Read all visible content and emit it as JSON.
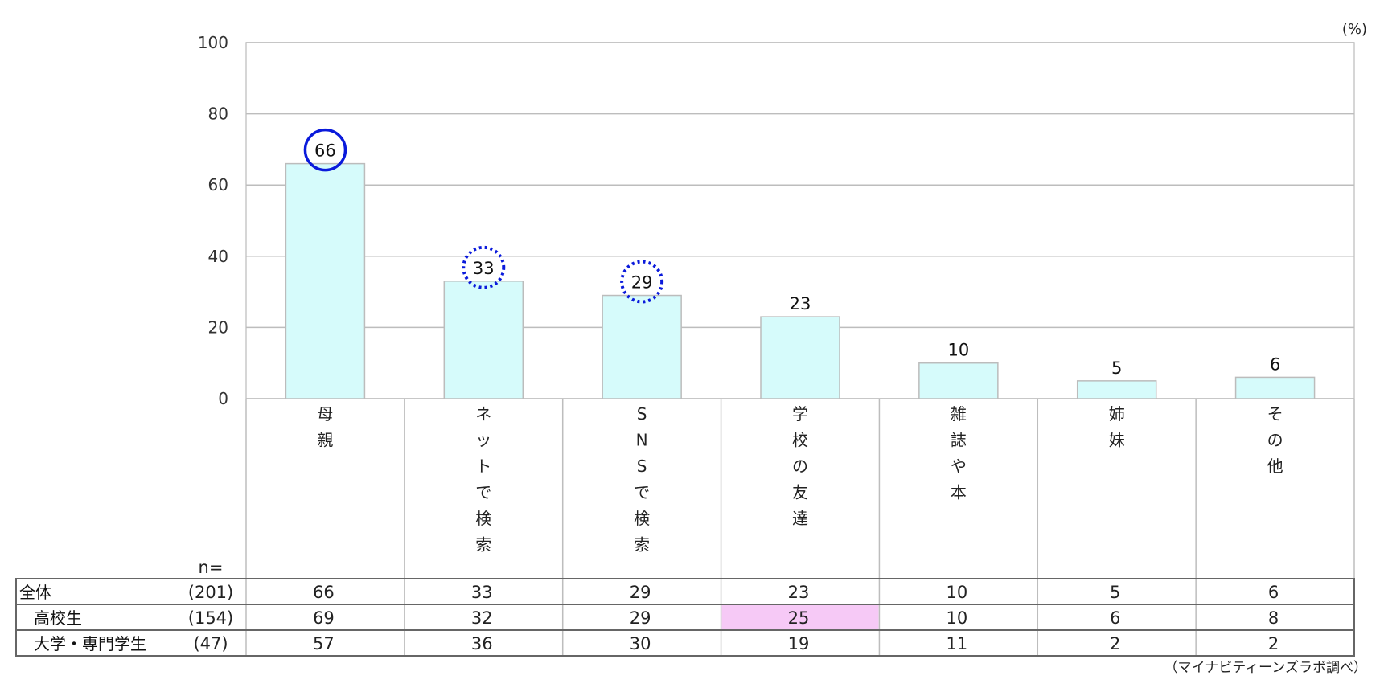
{
  "chart_data": {
    "type": "bar",
    "unit_label": "(%)",
    "categories": [
      "母親",
      "ネットで検索",
      "SNSで検索",
      "学校の友達",
      "雑誌や本",
      "姉妹",
      "その他"
    ],
    "series": [
      {
        "values": [
          66,
          33,
          29,
          23,
          10,
          5,
          6
        ]
      }
    ],
    "yticks": [
      0,
      20,
      40,
      60,
      80,
      100
    ],
    "ylim": [
      0,
      100
    ],
    "grid": true,
    "bar_color": "#d6fbfb",
    "bar_border": "#bcbcbc",
    "highlights": [
      {
        "category_index": 0,
        "style": "solid-circle",
        "color": "#0a1adb"
      },
      {
        "category_index": 1,
        "style": "dotted-circle",
        "color": "#0a1adb"
      },
      {
        "category_index": 2,
        "style": "dotted-circle",
        "color": "#0a1adb"
      }
    ],
    "table": {
      "n_header": "n=",
      "rows": [
        {
          "name": "全体",
          "n": "(201)",
          "values": [
            66,
            33,
            29,
            23,
            10,
            5,
            6
          ],
          "indent": false
        },
        {
          "name": "高校生",
          "n": "(154)",
          "values": [
            69,
            32,
            29,
            25,
            10,
            6,
            8
          ],
          "indent": true
        },
        {
          "name": "大学・専門学生",
          "n": "(47)",
          "values": [
            57,
            36,
            30,
            19,
            11,
            2,
            2
          ],
          "indent": true
        }
      ],
      "highlight_cells": [
        {
          "row": 1,
          "col": 3,
          "color": "#f6c9f6"
        }
      ]
    },
    "source_note": "（マイナビティーンズラボ調べ）"
  }
}
